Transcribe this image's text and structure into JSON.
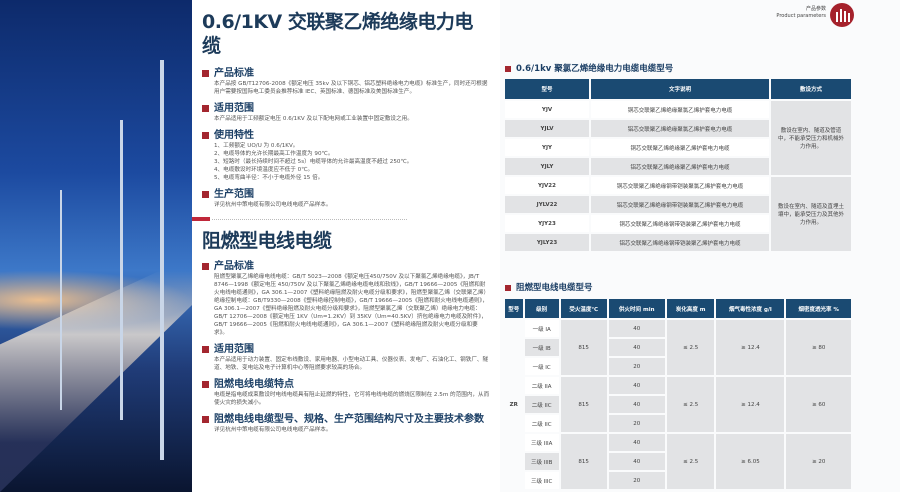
{
  "left": {
    "title1": "0.6/1KV 交联聚乙烯绝缘电力电缆",
    "sections1": [
      {
        "heading": "产品标准",
        "body": "本产品按 GB/T12706-2008《额定电压 35kv 及以下铜芯、铝芯塑料绝缘电力电缆》标准生产，同时还可根据用户需要按国际电工委员会推荐标准 IEC、英国标准、德国标准及美国标准生产。"
      },
      {
        "heading": "适用范围",
        "body": "本产品适用于工频额定电压 0.6/1KV 及以下配电网或工业装置中固定敷设之用。"
      },
      {
        "heading": "使用特性",
        "body": "1、工频额定 UO/U 为 0.6/1KV。\n2、电缆导体的允许长期最高工作温度为 90℃。\n3、短路时（最长持续时间不超过 5s）电缆导体的允许最高温度不超过 250℃。\n4、电缆敷设时环境温度应不低于 0℃。\n5、电缆弯曲半径：不小于电缆外径 15 倍。"
      },
      {
        "heading": "生产范围",
        "body": "详见杭州中策电缆有限公司电线电缆产品样本。"
      }
    ],
    "title2": "阻燃型电线电缆",
    "sections2": [
      {
        "heading": "产品标准",
        "body": "阻燃型聚氯乙烯绝缘电线电缆：GB/T 5023—2008《额定电压450/750V 及以下聚氯乙烯绝缘电缆》，JB/T 8746—1998《额定电压 450/750V 及以下聚氯乙烯绝缘电缆电线和软线》，GB/T 19666—2005《阻燃和耐火电线电缆通则》，GA 306.1—2007《塑料绝缘阻燃及耐火电缆分级和要求》，阻燃型聚氯乙烯（交联聚乙烯）绝缘控制电缆：GB/T9330—2008《塑料绝缘控制电缆》，GB/T 19666—2005《阻燃和耐火电线电缆通则》，GA 306.1—2007《塑料绝缘阻燃及耐火电缆分级和要求》，阻燃型聚氯乙烯（交联聚乙烯）绝缘电力电缆：GB/T 12706—2008《额定电压 1KV（Um=1.2KV）到 35KV（Um=40.5KV）挤包绝缘电力电缆及附件》，GB/T 19666—2005《阻燃和耐火电线电缆通则》，GA 306.1—2007《塑料绝缘阻燃及耐火电缆分级和要求》。"
      },
      {
        "heading": "适用范围",
        "body": "本产品适用于动力装置、固定布线敷设、家用电器、小型电动工具、仪器仪表、发电厂、石油化工、钢铁厂、隧道、地铁、变电站及电子计算机中心等阻燃要求较高的场合。"
      },
      {
        "heading": "阻燃电线电缆特点",
        "body": "电缆是指电缆成束敷设时电线电缆具有阻止延燃的特性，它可将电线电缆的燃烧区限制在 2.5m 的范围内，从而使火灾的损失减小。"
      },
      {
        "heading": "阻燃电线电缆型号、规格、生产范围结构尺寸及主要技术参数",
        "body": "详见杭州中策电缆有限公司电线电缆产品样本。"
      }
    ]
  },
  "right": {
    "badge_cn": "产品参数",
    "badge_en": "Product parameters",
    "table1": {
      "title": "0.6/1kv 聚氯乙烯绝缘电力电缆电缆型号",
      "headers": [
        "型号",
        "文字说明",
        "敷设方式"
      ],
      "rows": [
        [
          "YJV",
          "铜芯交联聚乙烯绝缘聚氯乙烯护套电力电缆"
        ],
        [
          "YJLV",
          "铝芯交联聚乙烯绝缘聚氯乙烯护套电力电缆"
        ],
        [
          "YJY",
          "铜芯交联聚乙烯绝缘聚乙烯护套电力电缆"
        ],
        [
          "YJLY",
          "铝芯交联聚乙烯绝缘聚乙烯护套电力电缆"
        ],
        [
          "YJV22",
          "铜芯交联聚乙烯绝缘钢带铠装聚氯乙烯护套电力电缆"
        ],
        [
          "JYLV22",
          "铝芯交联聚乙烯绝缘钢带铠装聚氯乙烯护套电力电缆"
        ],
        [
          "YJY23",
          "铜芯交联聚乙烯绝缘钢带铠装聚乙烯护套电力电缆"
        ],
        [
          "YJLY23",
          "铝芯交联聚乙烯绝缘钢带铠装聚乙烯护套电力电缆"
        ]
      ],
      "laying": [
        "敷设在室内、隧道及管道中，不能承受压力和机械外力作用。",
        "敷设在室内、隧道及直埋土壤中，能承受压力及其他外力作用。"
      ]
    },
    "table2": {
      "title": "阻燃型电线电缆型号",
      "headers": [
        "型号",
        "级别",
        "受火温度℃",
        "供火时间 min",
        "炭化高度 m",
        "烟气毒性浓度 g/l",
        "烟密度透光率 %"
      ],
      "model": "ZR",
      "groups": [
        {
          "grades": [
            "一级 IA",
            "一级 IB",
            "一级 IC"
          ],
          "temp": "815",
          "times": [
            "40",
            "40",
            "20"
          ],
          "char": "≤ 2.5",
          "tox": "≥ 12.4",
          "smoke": "≥ 80"
        },
        {
          "grades": [
            "二级 IIA",
            "二级 IIC",
            "二级 IIC"
          ],
          "temp": "815",
          "times": [
            "40",
            "40",
            "20"
          ],
          "char": "≤ 2.5",
          "tox": "≥ 12.4",
          "smoke": "≥ 60"
        },
        {
          "grades": [
            "三级 IIIA",
            "三级 IIIB",
            "三级 IIIC"
          ],
          "temp": "815",
          "times": [
            "40",
            "40",
            "20"
          ],
          "char": "≤ 2.5",
          "tox": "≥ 6.05",
          "smoke": "≥ 20"
        }
      ]
    }
  },
  "colors": {
    "navy": "#1a4a72",
    "red": "#a3262f"
  }
}
